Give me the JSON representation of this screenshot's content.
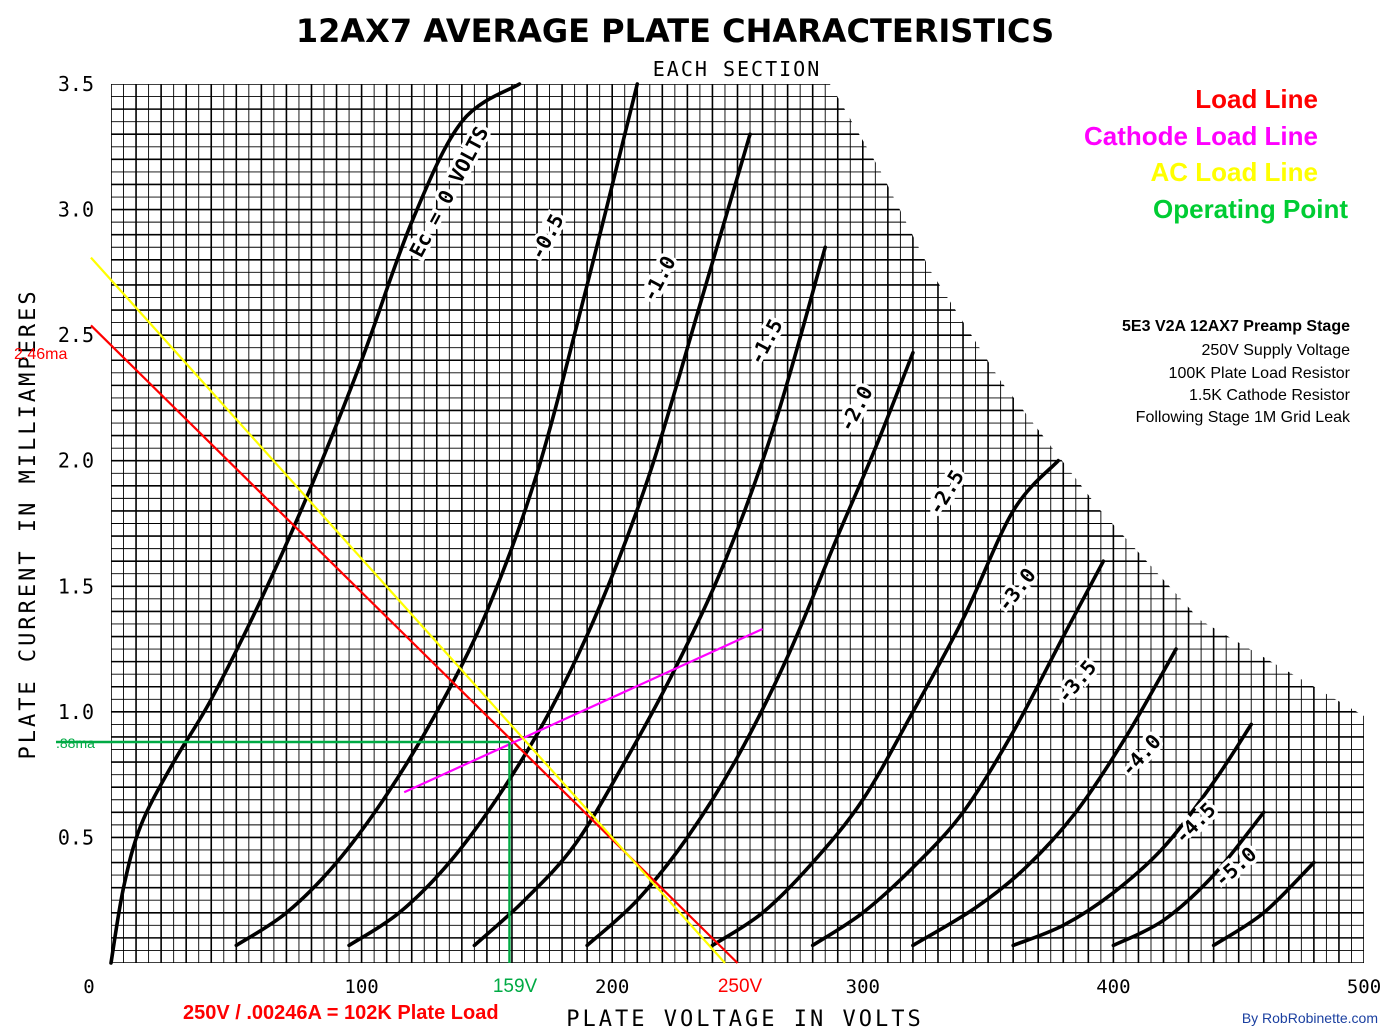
{
  "chart_data": {
    "type": "line",
    "title": "12AX7 AVERAGE PLATE CHARACTERISTICS",
    "subtitle": "EACH SECTION",
    "xlabel": "PLATE VOLTAGE IN VOLTS",
    "ylabel": "PLATE CURRENT IN MILLIAMPERES",
    "xlim": [
      0,
      500
    ],
    "ylim": [
      0,
      3.5
    ],
    "x_ticks": [
      "0",
      "100",
      "200",
      "300",
      "400",
      "500"
    ],
    "y_ticks": [
      "0.5",
      "1.0",
      "1.5",
      "2.0",
      "2.5",
      "3.0",
      "3.5"
    ],
    "grid": true,
    "series": [
      {
        "name": "Ec = 0 VOLTS",
        "x": [
          0,
          5,
          12,
          25,
          40,
          60,
          80,
          100,
          120,
          140,
          163
        ],
        "y": [
          0,
          0.3,
          0.55,
          0.8,
          1.05,
          1.45,
          1.9,
          2.4,
          2.95,
          3.35,
          3.5
        ]
      },
      {
        "name": "-0.5",
        "x": [
          50,
          70,
          90,
          110,
          130,
          150,
          170,
          190,
          210
        ],
        "y": [
          0.07,
          0.2,
          0.4,
          0.67,
          1.0,
          1.4,
          1.95,
          2.7,
          3.5
        ]
      },
      {
        "name": "-1.0",
        "x": [
          95,
          115,
          135,
          155,
          175,
          195,
          215,
          235,
          255
        ],
        "y": [
          0.07,
          0.2,
          0.4,
          0.67,
          1.0,
          1.42,
          1.95,
          2.62,
          3.3
        ]
      },
      {
        "name": "-1.5",
        "x": [
          145,
          165,
          185,
          205,
          225,
          245,
          265,
          285
        ],
        "y": [
          0.07,
          0.25,
          0.47,
          0.8,
          1.17,
          1.6,
          2.15,
          2.85
        ]
      },
      {
        "name": "-2.0",
        "x": [
          190,
          210,
          230,
          250,
          270,
          290,
          305,
          320
        ],
        "y": [
          0.07,
          0.25,
          0.5,
          0.82,
          1.22,
          1.7,
          2.05,
          2.43
        ]
      },
      {
        "name": "-2.5",
        "x": [
          240,
          260,
          280,
          300,
          320,
          340,
          360,
          378
        ],
        "y": [
          0.07,
          0.2,
          0.4,
          0.65,
          1.0,
          1.37,
          1.8,
          2.0
        ]
      },
      {
        "name": "-3.0",
        "x": [
          280,
          300,
          320,
          340,
          360,
          380,
          396
        ],
        "y": [
          0.07,
          0.2,
          0.38,
          0.6,
          0.92,
          1.3,
          1.6
        ]
      },
      {
        "name": "-3.5",
        "x": [
          320,
          345,
          365,
          385,
          405,
          425
        ],
        "y": [
          0.07,
          0.22,
          0.38,
          0.6,
          0.9,
          1.25
        ]
      },
      {
        "name": "-4.0",
        "x": [
          360,
          380,
          400,
          420,
          440,
          455
        ],
        "y": [
          0.07,
          0.15,
          0.28,
          0.46,
          0.72,
          0.95
        ]
      },
      {
        "name": "-4.5",
        "x": [
          400,
          420,
          440,
          460
        ],
        "y": [
          0.07,
          0.17,
          0.35,
          0.6
        ]
      },
      {
        "name": "-5.0",
        "x": [
          440,
          460,
          480
        ],
        "y": [
          0.07,
          0.2,
          0.4
        ]
      }
    ],
    "overlay_lines": [
      {
        "name": "Load Line",
        "color": "#ff0000",
        "x": [
          0,
          250
        ],
        "y": [
          2.46,
          0
        ]
      },
      {
        "name": "Cathode Load Line",
        "color": "#ff00ff",
        "x": [
          117,
          260
        ],
        "y": [
          0.68,
          1.33
        ]
      },
      {
        "name": "AC Load Line",
        "color": "#ffff00",
        "x": [
          0,
          245
        ],
        "y": [
          2.72,
          0
        ]
      },
      {
        "name": "Operating Point",
        "color": "#00aa44",
        "x": [
          0,
          159
        ],
        "y": [
          0.88,
          0.88
        ]
      },
      {
        "name": "Operating Point",
        "color": "#00aa44",
        "x": [
          159,
          159
        ],
        "y": [
          0.88,
          0
        ]
      }
    ],
    "annotations": {
      "current_load_line": "2.46ma",
      "current_operating_point": ".88ma",
      "voltage_operating_point": "159V",
      "voltage_supply": "250V",
      "formula": "250V / .00246A = 102K Plate Load"
    },
    "legend": {
      "placement": "top-right",
      "items": [
        {
          "label": "Load Line",
          "color": "#ff0000"
        },
        {
          "label": "Cathode Load Line",
          "color": "#ff00ff"
        },
        {
          "label": "AC Load Line",
          "color": "#ffff00"
        },
        {
          "label": "Operating Point",
          "color": "#00aa44"
        }
      ]
    },
    "notes": [
      "5E3 V2A 12AX7 Preamp Stage",
      "250V Supply Voltage",
      "100K Plate Load Resistor",
      "1.5K Cathode Resistor",
      "Following Stage 1M Grid Leak"
    ],
    "credit": "By RobRobinette.com"
  }
}
